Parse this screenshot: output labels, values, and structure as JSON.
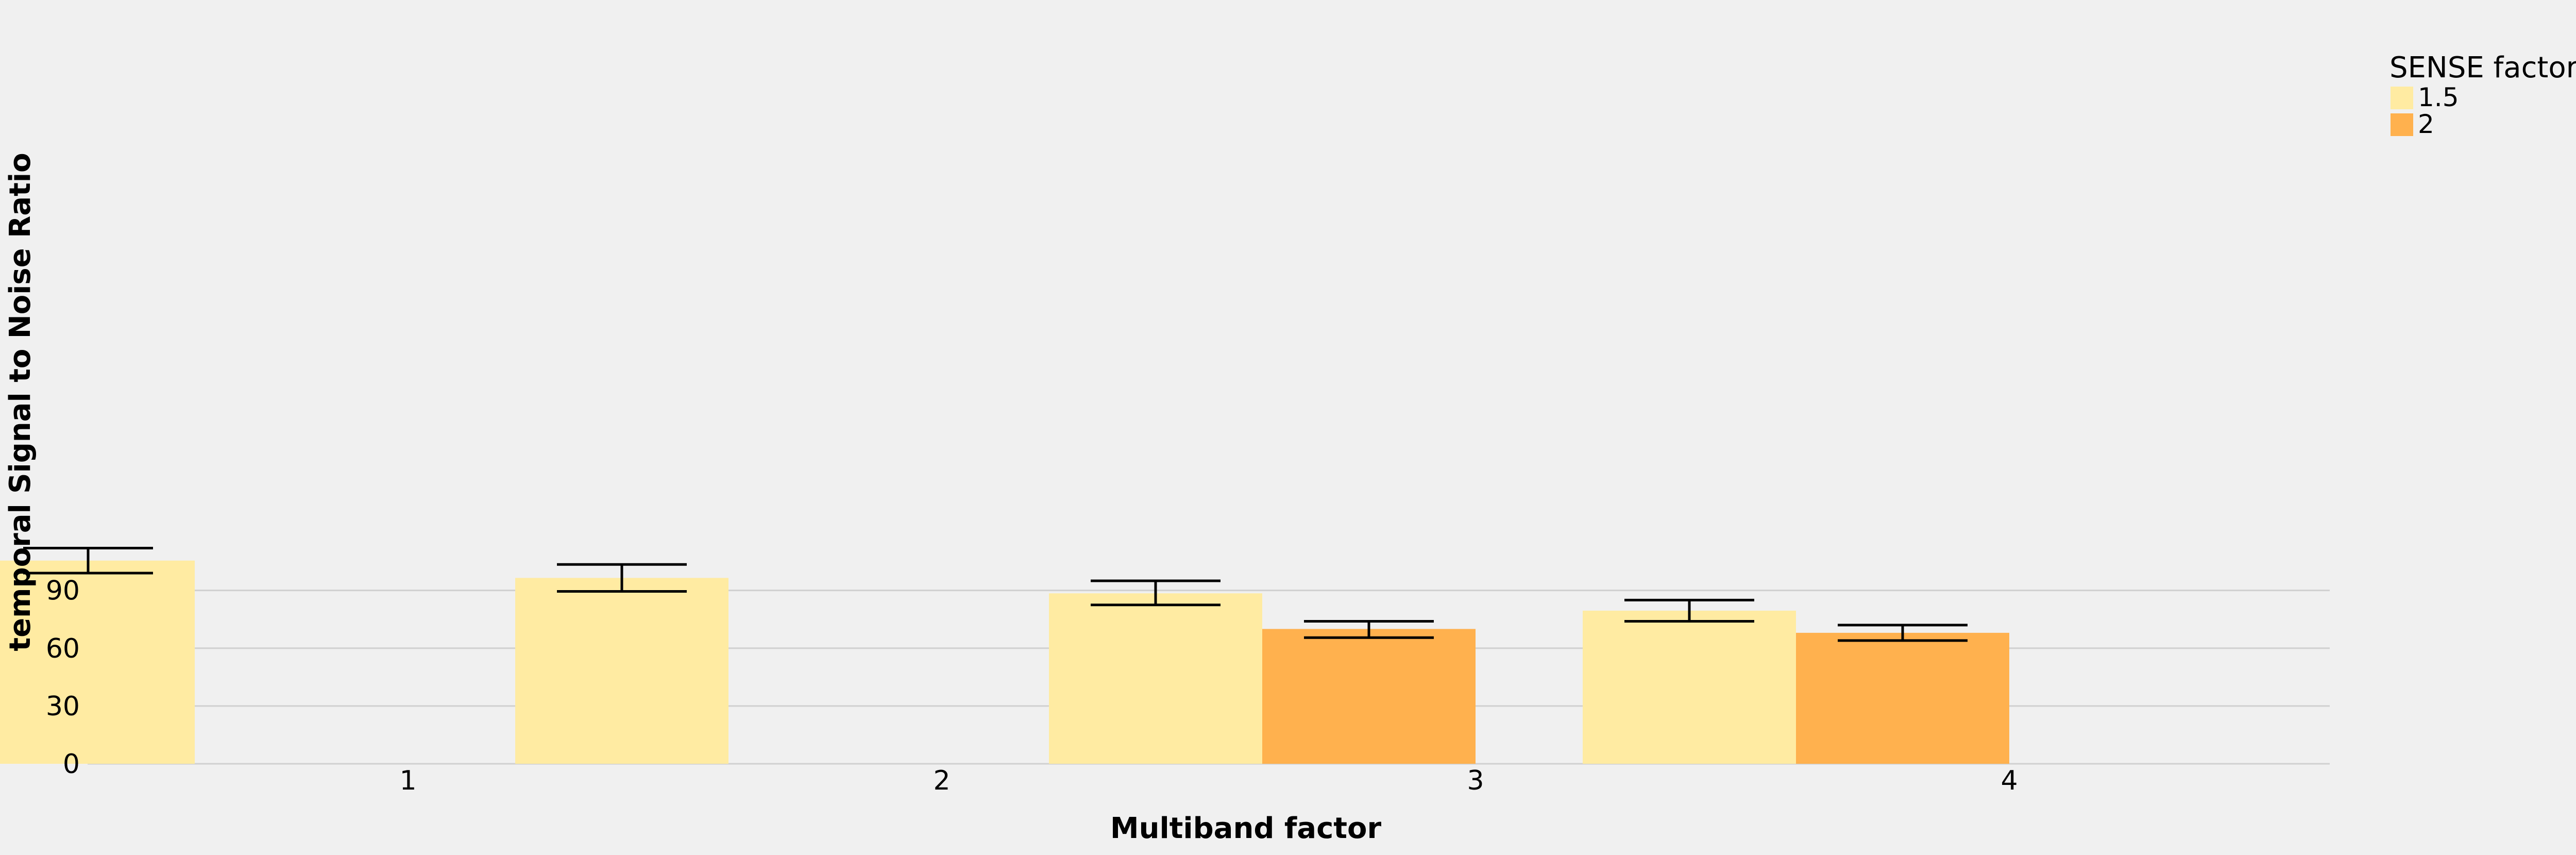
{
  "chart_data": {
    "type": "bar",
    "title": "",
    "xlabel": "Multiband factor",
    "ylabel": "temporal Signal to Noise Ratio",
    "categories": [
      "1",
      "2",
      "3",
      "4"
    ],
    "ylim": [
      0,
      120
    ],
    "yticks": [
      0,
      30,
      60,
      90
    ],
    "grid": true,
    "legend": {
      "title": "SENSE factor",
      "placement": "top-right"
    },
    "series": [
      {
        "name": "1.5",
        "color": "#ffeba2",
        "values": [
          105.5,
          96.5,
          88.5,
          79.5
        ],
        "error_low": [
          99.0,
          89.5,
          82.5,
          74.0
        ],
        "error_high": [
          112.0,
          103.5,
          95.0,
          85.0
        ]
      },
      {
        "name": "2",
        "color": "#ffb14e",
        "values": [
          null,
          null,
          70.0,
          68.0
        ],
        "error_low": [
          null,
          null,
          65.5,
          64.0
        ],
        "error_high": [
          null,
          null,
          74.0,
          72.0
        ]
      }
    ]
  }
}
